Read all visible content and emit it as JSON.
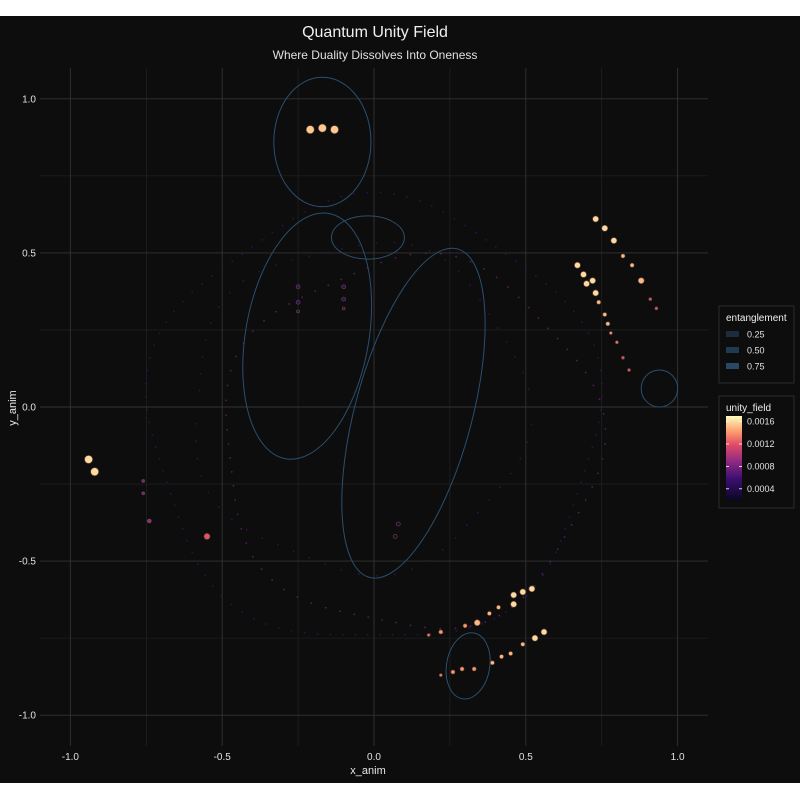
{
  "chart_data": {
    "type": "scatter",
    "title": "Quantum Unity Field",
    "subtitle": "Where Duality Dissolves Into Oneness",
    "xlabel": "x_anim",
    "ylabel": "y_anim",
    "xlim": [
      -1.1,
      1.1
    ],
    "ylim": [
      -1.1,
      1.1
    ],
    "x_ticks": [
      "-1.0",
      "-0.5",
      "0.0",
      "0.5",
      "1.0"
    ],
    "y_ticks": [
      "-1.0",
      "-0.5",
      "0.0",
      "0.5",
      "1.0"
    ],
    "grid": true,
    "background": "#0d0d0d",
    "legend_position": "right",
    "legend_entanglement": {
      "title": "entanglement",
      "entries": [
        "0.25",
        "0.50",
        "0.75"
      ],
      "color": "#2b4f6e"
    },
    "legend_unity_field": {
      "title": "unity_field",
      "ticks": [
        "0.0016",
        "0.0012",
        "0.0008",
        "0.0004"
      ],
      "tick_values": [
        0.0016,
        0.0012,
        0.0008,
        0.0004
      ],
      "range": [
        0.0002,
        0.0017
      ],
      "colormap": "magma"
    },
    "contours": [
      {
        "cx": -0.17,
        "cy": 0.86,
        "rx": 0.16,
        "ry": 0.21,
        "rot": 0
      },
      {
        "cx": -0.02,
        "cy": 0.55,
        "rx": 0.12,
        "ry": 0.07,
        "rot": 0
      },
      {
        "cx": -0.22,
        "cy": 0.23,
        "rx": 0.41,
        "ry": 0.2,
        "rot": 80
      },
      {
        "cx": 0.13,
        "cy": -0.02,
        "rx": 0.56,
        "ry": 0.19,
        "rot": 75
      },
      {
        "cx": 0.31,
        "cy": -0.84,
        "rx": 0.11,
        "ry": 0.07,
        "rot": 80
      },
      {
        "cx": 0.94,
        "cy": 0.06,
        "rx": 0.06,
        "ry": 0.06,
        "rot": 0
      }
    ],
    "points": [
      {
        "x": -0.21,
        "y": 0.9,
        "u": 0.00155,
        "s": 4
      },
      {
        "x": -0.17,
        "y": 0.905,
        "u": 0.00155,
        "s": 4
      },
      {
        "x": -0.13,
        "y": 0.9,
        "u": 0.00155,
        "s": 4
      },
      {
        "x": -0.94,
        "y": -0.17,
        "u": 0.0016,
        "s": 4
      },
      {
        "x": -0.92,
        "y": -0.21,
        "u": 0.0016,
        "s": 4
      },
      {
        "x": -0.55,
        "y": -0.42,
        "u": 0.0012,
        "s": 3
      },
      {
        "x": -0.74,
        "y": -0.37,
        "u": 0.0009,
        "s": 2
      },
      {
        "x": -0.76,
        "y": -0.24,
        "u": 0.0008,
        "s": 1.5
      },
      {
        "x": -0.76,
        "y": -0.28,
        "u": 0.0008,
        "s": 1.5
      },
      {
        "x": 0.08,
        "y": -0.38,
        "u": 0.0003,
        "s": 2
      },
      {
        "x": 0.07,
        "y": -0.42,
        "u": 0.0003,
        "s": 2
      },
      {
        "x": -0.25,
        "y": 0.39,
        "u": 0.0005,
        "s": 2
      },
      {
        "x": -0.25,
        "y": 0.34,
        "u": 0.0005,
        "s": 2
      },
      {
        "x": -0.25,
        "y": 0.31,
        "u": 0.0005,
        "s": 1.5
      },
      {
        "x": -0.1,
        "y": 0.39,
        "u": 0.0005,
        "s": 2
      },
      {
        "x": -0.1,
        "y": 0.35,
        "u": 0.0005,
        "s": 2
      },
      {
        "x": -0.1,
        "y": 0.32,
        "u": 0.0005,
        "s": 1.5
      },
      {
        "x": 0.73,
        "y": 0.61,
        "u": 0.0016,
        "s": 3
      },
      {
        "x": 0.76,
        "y": 0.58,
        "u": 0.0016,
        "s": 3
      },
      {
        "x": 0.79,
        "y": 0.54,
        "u": 0.0016,
        "s": 3
      },
      {
        "x": 0.82,
        "y": 0.49,
        "u": 0.0015,
        "s": 2
      },
      {
        "x": 0.85,
        "y": 0.46,
        "u": 0.0015,
        "s": 2
      },
      {
        "x": 0.88,
        "y": 0.41,
        "u": 0.0015,
        "s": 3
      },
      {
        "x": 0.91,
        "y": 0.35,
        "u": 0.0012,
        "s": 1.5
      },
      {
        "x": 0.93,
        "y": 0.32,
        "u": 0.0012,
        "s": 1.5
      },
      {
        "x": 0.67,
        "y": 0.46,
        "u": 0.0016,
        "s": 3
      },
      {
        "x": 0.69,
        "y": 0.43,
        "u": 0.0016,
        "s": 3
      },
      {
        "x": 0.7,
        "y": 0.4,
        "u": 0.0016,
        "s": 3
      },
      {
        "x": 0.72,
        "y": 0.41,
        "u": 0.0016,
        "s": 3
      },
      {
        "x": 0.73,
        "y": 0.37,
        "u": 0.0016,
        "s": 3
      },
      {
        "x": 0.74,
        "y": 0.34,
        "u": 0.0015,
        "s": 2
      },
      {
        "x": 0.76,
        "y": 0.3,
        "u": 0.0015,
        "s": 2
      },
      {
        "x": 0.77,
        "y": 0.27,
        "u": 0.0015,
        "s": 2
      },
      {
        "x": 0.78,
        "y": 0.24,
        "u": 0.0014,
        "s": 1.5
      },
      {
        "x": 0.8,
        "y": 0.21,
        "u": 0.0013,
        "s": 1.5
      },
      {
        "x": 0.82,
        "y": 0.16,
        "u": 0.0012,
        "s": 1.5
      },
      {
        "x": 0.84,
        "y": 0.12,
        "u": 0.0012,
        "s": 1.5
      },
      {
        "x": 0.52,
        "y": -0.59,
        "u": 0.0016,
        "s": 3
      },
      {
        "x": 0.49,
        "y": -0.6,
        "u": 0.0016,
        "s": 3
      },
      {
        "x": 0.46,
        "y": -0.61,
        "u": 0.0016,
        "s": 3
      },
      {
        "x": 0.46,
        "y": -0.64,
        "u": 0.0016,
        "s": 3
      },
      {
        "x": 0.41,
        "y": -0.65,
        "u": 0.0015,
        "s": 2
      },
      {
        "x": 0.38,
        "y": -0.67,
        "u": 0.0015,
        "s": 2
      },
      {
        "x": 0.34,
        "y": -0.7,
        "u": 0.0015,
        "s": 3
      },
      {
        "x": 0.3,
        "y": -0.71,
        "u": 0.0014,
        "s": 2
      },
      {
        "x": 0.22,
        "y": -0.73,
        "u": 0.0014,
        "s": 2
      },
      {
        "x": 0.18,
        "y": -0.74,
        "u": 0.0013,
        "s": 1.5
      },
      {
        "x": 0.56,
        "y": -0.73,
        "u": 0.0016,
        "s": 3
      },
      {
        "x": 0.53,
        "y": -0.75,
        "u": 0.0016,
        "s": 3
      },
      {
        "x": 0.49,
        "y": -0.77,
        "u": 0.0015,
        "s": 2
      },
      {
        "x": 0.45,
        "y": -0.8,
        "u": 0.0015,
        "s": 2
      },
      {
        "x": 0.42,
        "y": -0.81,
        "u": 0.0015,
        "s": 2
      },
      {
        "x": 0.39,
        "y": -0.83,
        "u": 0.0015,
        "s": 2
      },
      {
        "x": 0.33,
        "y": -0.85,
        "u": 0.0014,
        "s": 2
      },
      {
        "x": 0.29,
        "y": -0.85,
        "u": 0.0014,
        "s": 2
      },
      {
        "x": 0.26,
        "y": -0.86,
        "u": 0.0014,
        "s": 2
      },
      {
        "x": 0.22,
        "y": -0.87,
        "u": 0.0013,
        "s": 1.5
      }
    ],
    "rings": [
      {
        "cx": 0.0,
        "cy": -0.05,
        "r": 0.74,
        "u": 0.0006,
        "n": 110
      },
      {
        "cx": 0.12,
        "cy": -0.12,
        "r": 0.62,
        "u": 0.0008,
        "n": 80
      },
      {
        "cx": -0.05,
        "cy": 0.0,
        "r": 0.55,
        "u": 0.0006,
        "n": 60
      }
    ]
  }
}
